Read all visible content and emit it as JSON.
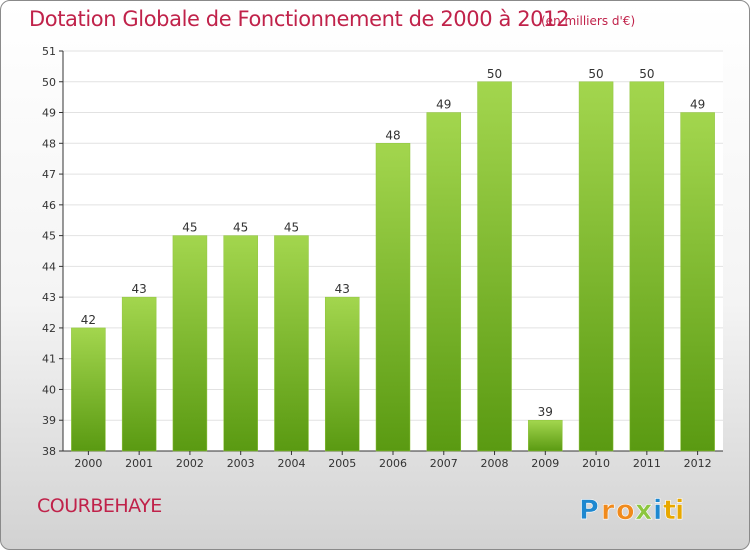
{
  "chart_data": {
    "type": "bar",
    "title": "Dotation Globale de Fonctionnement de 2000 à 2012",
    "unit_note": "(en milliers d'€)",
    "xlabel": "",
    "ylabel": "",
    "categories": [
      "2000",
      "2001",
      "2002",
      "2003",
      "2004",
      "2005",
      "2006",
      "2007",
      "2008",
      "2009",
      "2010",
      "2011",
      "2012"
    ],
    "values": [
      42,
      43,
      45,
      45,
      45,
      43,
      48,
      49,
      50,
      39,
      50,
      50,
      49
    ],
    "ylim": [
      38,
      51
    ],
    "yticks": [
      38,
      39,
      40,
      41,
      42,
      43,
      44,
      45,
      46,
      47,
      48,
      49,
      50,
      51
    ],
    "grid": true,
    "bar_color_top": "#a3d64e",
    "bar_color_bottom": "#5a9a12"
  },
  "commune": "COURBEHAYE",
  "logo": {
    "letters": [
      "P",
      "r",
      "o",
      "x",
      "i",
      "t",
      "i"
    ],
    "colors": [
      "#1e88d0",
      "#f08a1c",
      "#f08a1c",
      "#8cc63f",
      "#1e88d0",
      "#e8a800",
      "#e8a800"
    ]
  },
  "colors": {
    "title": "#c0224a",
    "axis": "#333333",
    "grid": "#e2e2e2"
  }
}
